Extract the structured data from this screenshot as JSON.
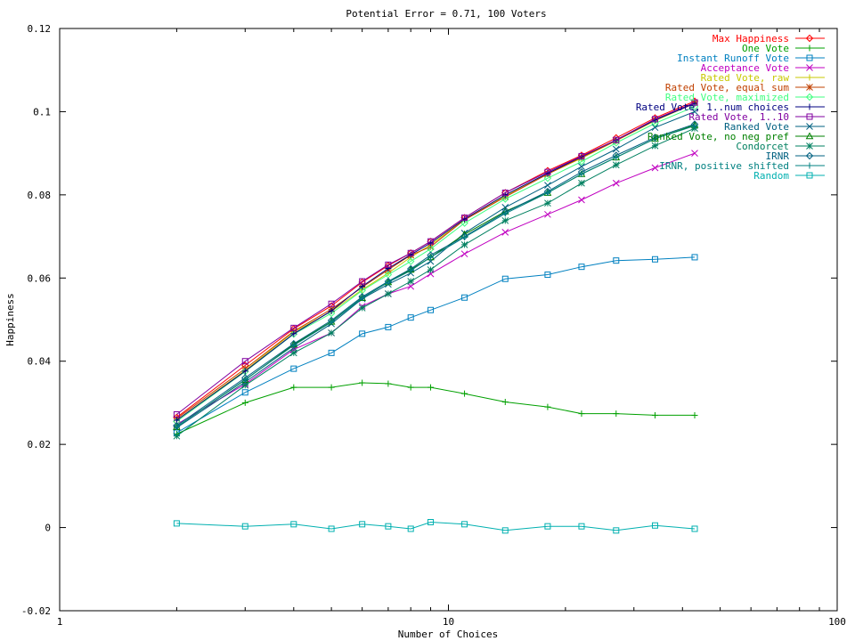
{
  "chart_data": {
    "type": "line",
    "title": "Potential Error = 0.71, 100 Voters",
    "xlabel": "Number of Choices",
    "ylabel": "Happiness",
    "xscale": "log",
    "xlim": [
      1,
      100
    ],
    "ylim": [
      -0.02,
      0.12
    ],
    "x_ticks": [
      1,
      10,
      100
    ],
    "y_ticks": [
      -0.02,
      0,
      0.02,
      0.04,
      0.06,
      0.08,
      0.1,
      0.12
    ],
    "y_tick_labels": [
      "-0.02",
      "0",
      "0.02",
      "0.04",
      "0.06",
      "0.08",
      "0.1",
      "0.12"
    ],
    "grid": false,
    "legend_position": "top-right",
    "x": [
      2,
      3,
      4,
      5,
      6,
      7,
      8,
      9,
      11,
      14,
      18,
      22,
      27,
      34,
      43
    ],
    "series": [
      {
        "name": "Max Happiness",
        "color": "#ff0000",
        "marker": "diamond",
        "values": [
          0.0265,
          0.039,
          0.0478,
          0.0533,
          0.059,
          0.063,
          0.066,
          0.0688,
          0.0745,
          0.0805,
          0.0858,
          0.0895,
          0.0937,
          0.0985,
          0.1025
        ]
      },
      {
        "name": "One Vote",
        "color": "#00a000",
        "marker": "plus",
        "values": [
          0.0225,
          0.03,
          0.0337,
          0.0337,
          0.0348,
          0.0346,
          0.0337,
          0.0337,
          0.0322,
          0.0302,
          0.029,
          0.0274,
          0.0274,
          0.027,
          0.027
        ]
      },
      {
        "name": "Instant Runoff Vote",
        "color": "#0080c0",
        "marker": "square",
        "values": [
          0.0228,
          0.0325,
          0.0382,
          0.042,
          0.0466,
          0.0482,
          0.0505,
          0.0523,
          0.0553,
          0.0598,
          0.0608,
          0.0627,
          0.0642,
          0.0645,
          0.065
        ]
      },
      {
        "name": "Acceptance Vote",
        "color": "#c000c0",
        "marker": "x",
        "values": [
          0.0248,
          0.0345,
          0.0428,
          0.0468,
          0.0532,
          0.0562,
          0.058,
          0.061,
          0.0658,
          0.071,
          0.0753,
          0.0788,
          0.0828,
          0.0865,
          0.09
        ]
      },
      {
        "name": "Rated Vote, raw",
        "color": "#c8c800",
        "marker": "plus",
        "values": [
          0.0258,
          0.0378,
          0.047,
          0.052,
          0.0572,
          0.0612,
          0.065,
          0.068,
          0.074,
          0.0797,
          0.085,
          0.0888,
          0.093,
          0.0978,
          0.102
        ]
      },
      {
        "name": "Rated Vote, equal sum",
        "color": "#c04000",
        "marker": "star",
        "values": [
          0.0262,
          0.0382,
          0.0472,
          0.0525,
          0.0578,
          0.062,
          0.0655,
          0.0675,
          0.074,
          0.0795,
          0.085,
          0.089,
          0.093,
          0.098,
          0.1022
        ]
      },
      {
        "name": "Rated Vote, maximized",
        "color": "#40ff80",
        "marker": "diamond",
        "values": [
          0.0255,
          0.0375,
          0.0465,
          0.0515,
          0.057,
          0.0608,
          0.064,
          0.067,
          0.0732,
          0.079,
          0.084,
          0.088,
          0.0925,
          0.0972,
          0.1012
        ]
      },
      {
        "name": "Rated Vote, 1..num choices",
        "color": "#000080",
        "marker": "plus",
        "values": [
          0.0258,
          0.0376,
          0.0466,
          0.0521,
          0.058,
          0.0623,
          0.0656,
          0.0684,
          0.0742,
          0.08,
          0.0852,
          0.0892,
          0.0932,
          0.098,
          0.102
        ]
      },
      {
        "name": "Rated Vote, 1..10",
        "color": "#8000a0",
        "marker": "square",
        "values": [
          0.0272,
          0.04,
          0.048,
          0.0538,
          0.0592,
          0.0632,
          0.066,
          0.0688,
          0.0745,
          0.0805,
          0.0855,
          0.0893,
          0.0932,
          0.0982,
          0.1022
        ]
      },
      {
        "name": "Ranked Vote",
        "color": "#006080",
        "marker": "x",
        "values": [
          0.024,
          0.035,
          0.0432,
          0.049,
          0.055,
          0.0585,
          0.0612,
          0.064,
          0.0708,
          0.077,
          0.0823,
          0.0868,
          0.091,
          0.0962,
          0.1
        ]
      },
      {
        "name": "Ranked Vote, no neg pref",
        "color": "#008000",
        "marker": "triangle",
        "values": [
          0.0242,
          0.0355,
          0.044,
          0.0495,
          0.0552,
          0.059,
          0.062,
          0.065,
          0.0705,
          0.076,
          0.0805,
          0.085,
          0.089,
          0.0935,
          0.0968
        ]
      },
      {
        "name": "Condorcet",
        "color": "#008060",
        "marker": "star",
        "values": [
          0.022,
          0.0342,
          0.042,
          0.0468,
          0.0528,
          0.0562,
          0.0592,
          0.062,
          0.068,
          0.0738,
          0.078,
          0.0828,
          0.0872,
          0.0918,
          0.096
        ]
      },
      {
        "name": "IRNR",
        "color": "#006080",
        "marker": "diamond",
        "values": [
          0.0245,
          0.036,
          0.0442,
          0.0498,
          0.0555,
          0.0592,
          0.0622,
          0.0655,
          0.07,
          0.0758,
          0.0808,
          0.0855,
          0.0895,
          0.0938,
          0.097
        ]
      },
      {
        "name": "IRNR, positive shifted",
        "color": "#008080",
        "marker": "plus",
        "values": [
          0.0242,
          0.0356,
          0.0438,
          0.0494,
          0.0552,
          0.059,
          0.0618,
          0.065,
          0.0698,
          0.0755,
          0.0805,
          0.085,
          0.089,
          0.0935,
          0.0966
        ]
      },
      {
        "name": "Random",
        "color": "#00b0b0",
        "marker": "square",
        "values": [
          0.001,
          0.0003,
          0.0008,
          -0.0003,
          0.0008,
          0.0003,
          -0.0003,
          0.0013,
          0.0008,
          -0.0007,
          0.0003,
          0.0003,
          -0.0007,
          0.0005,
          -0.0003
        ]
      }
    ]
  }
}
